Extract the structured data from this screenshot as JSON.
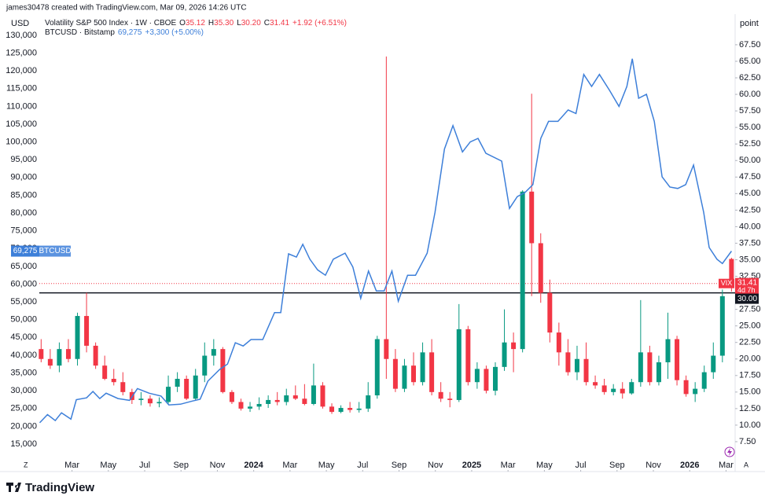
{
  "header": {
    "credit": "james30478 created with TradingView.com, Mar 09, 2026 14:26 UTC",
    "logo": "TradingView"
  },
  "chart_data": {
    "type": "candlestick",
    "legend": [
      {
        "name": "Volatility S&P 500 Index · 1W · CBOE",
        "fields": [
          {
            "label": "O",
            "value": "35.12"
          },
          {
            "label": "H",
            "value": "35.30"
          },
          {
            "label": "L",
            "value": "30.20"
          },
          {
            "label": "C",
            "value": "31.41"
          }
        ],
        "change": "+1.92 (+6.51%)",
        "color": "#f23645"
      },
      {
        "name": "BTCUSD · Bitstamp",
        "fields": [
          {
            "label": "",
            "value": "69,275"
          }
        ],
        "change": "+3,300 (+5.00%)",
        "color": "#3d7fd9"
      }
    ],
    "y_unit": "USD",
    "y2_unit": "point",
    "corner_labels": [
      "Z",
      "A"
    ],
    "xlim": [
      0.2,
      38.5
    ],
    "xticks": [
      {
        "value": 2,
        "label": "Mar"
      },
      {
        "value": 4,
        "label": "May"
      },
      {
        "value": 6,
        "label": "Jul"
      },
      {
        "value": 8,
        "label": "Sep"
      },
      {
        "value": 10,
        "label": "Nov"
      },
      {
        "value": 12,
        "label": "2024"
      },
      {
        "value": 14,
        "label": "Mar"
      },
      {
        "value": 16,
        "label": "May"
      },
      {
        "value": 18,
        "label": "Jul"
      },
      {
        "value": 20,
        "label": "Sep"
      },
      {
        "value": 22,
        "label": "Nov"
      },
      {
        "value": 24,
        "label": "2025"
      },
      {
        "value": 26,
        "label": "Mar"
      },
      {
        "value": 28,
        "label": "May"
      },
      {
        "value": 30,
        "label": "Jul"
      },
      {
        "value": 32,
        "label": "Sep"
      },
      {
        "value": 34,
        "label": "Nov"
      },
      {
        "value": 36,
        "label": "2026"
      },
      {
        "value": 38,
        "label": "Mar"
      }
    ],
    "ylim": [
      9470,
      133300
    ],
    "yticks": [
      {
        "value": 15000,
        "label": "15,000"
      },
      {
        "value": 20000,
        "label": "20,000"
      },
      {
        "value": 25000,
        "label": "25,000"
      },
      {
        "value": 30000,
        "label": "30,000"
      },
      {
        "value": 35000,
        "label": "35,000"
      },
      {
        "value": 40000,
        "label": "40,000"
      },
      {
        "value": 45000,
        "label": "45,000"
      },
      {
        "value": 50000,
        "label": "50,000"
      },
      {
        "value": 55000,
        "label": "55,000"
      },
      {
        "value": 60000,
        "label": "60,000"
      },
      {
        "value": 65000,
        "label": "65,000"
      },
      {
        "value": 70000,
        "label": "70,000"
      },
      {
        "value": 75000,
        "label": "75,000"
      },
      {
        "value": 80000,
        "label": "80,000"
      },
      {
        "value": 85000,
        "label": "85,000"
      },
      {
        "value": 90000,
        "label": "90,000"
      },
      {
        "value": 95000,
        "label": "95,000"
      },
      {
        "value": 100000,
        "label": "100,000"
      },
      {
        "value": 105000,
        "label": "105,000"
      },
      {
        "value": 110000,
        "label": "110,000"
      },
      {
        "value": 115000,
        "label": "115,000"
      },
      {
        "value": 120000,
        "label": "120,000"
      },
      {
        "value": 125000,
        "label": "125,000"
      },
      {
        "value": 130000,
        "label": "130,000"
      }
    ],
    "y2lim": [
      4.17,
      70.7
    ],
    "y2ticks": [
      {
        "value": 7.5,
        "label": "7.50"
      },
      {
        "value": 10,
        "label": "10.00"
      },
      {
        "value": 12.5,
        "label": "12.50"
      },
      {
        "value": 15,
        "label": "15.00"
      },
      {
        "value": 17.5,
        "label": "17.50"
      },
      {
        "value": 20,
        "label": "20.00"
      },
      {
        "value": 22.5,
        "label": "22.50"
      },
      {
        "value": 25,
        "label": "25.00"
      },
      {
        "value": 27.5,
        "label": "27.50"
      },
      {
        "value": 32.5,
        "label": "32.50"
      },
      {
        "value": 35,
        "label": "35.00"
      },
      {
        "value": 37.5,
        "label": "37.50"
      },
      {
        "value": 40,
        "label": "40.00"
      },
      {
        "value": 42.5,
        "label": "42.50"
      },
      {
        "value": 45,
        "label": "45.00"
      },
      {
        "value": 47.5,
        "label": "47.50"
      },
      {
        "value": 50,
        "label": "50.00"
      },
      {
        "value": 52.5,
        "label": "52.50"
      },
      {
        "value": 55,
        "label": "55.00"
      },
      {
        "value": 57.5,
        "label": "57.50"
      },
      {
        "value": 60,
        "label": "60.00"
      },
      {
        "value": 62.5,
        "label": "62.50"
      },
      {
        "value": 65,
        "label": "65.00"
      },
      {
        "value": 67.5,
        "label": "67.50"
      }
    ],
    "grid": false,
    "series": [
      {
        "name": "VIX",
        "type": "candlestick",
        "axis": "y2",
        "up_color": "#089981",
        "down_color": "#f23645",
        "x": [
          0.3,
          0.8,
          1.3,
          1.8,
          2.3,
          2.8,
          3.3,
          3.8,
          4.3,
          4.8,
          5.3,
          5.8,
          6.3,
          6.8,
          7.3,
          7.8,
          8.3,
          8.8,
          9.3,
          9.8,
          10.3,
          10.8,
          11.3,
          11.8,
          12.3,
          12.8,
          13.3,
          13.8,
          14.3,
          14.8,
          15.3,
          15.8,
          16.3,
          16.8,
          17.3,
          17.8,
          18.3,
          18.8,
          19.3,
          19.8,
          20.3,
          20.8,
          21.3,
          21.8,
          22.3,
          22.8,
          23.3,
          23.8,
          24.3,
          24.8,
          25.3,
          25.8,
          26.3,
          26.8,
          27.3,
          27.8,
          28.3,
          28.8,
          29.3,
          29.8,
          30.3,
          30.8,
          31.3,
          31.8,
          32.3,
          32.8,
          33.3,
          33.8,
          34.3,
          34.8,
          35.3,
          35.8,
          36.3,
          36.8,
          37.3,
          37.8,
          38.3
        ],
        "open": [
          21.5,
          20,
          19,
          21.5,
          20,
          26.5,
          22,
          19,
          17,
          16.5,
          15,
          13.8,
          14,
          13.3,
          13.5,
          15.8,
          17,
          14,
          17.5,
          20.5,
          21.5,
          15,
          13.5,
          12.5,
          12.8,
          13.2,
          13.8,
          13.5,
          14.5,
          14,
          13.2,
          16,
          12.8,
          12,
          12.6,
          12.3,
          12.5,
          14.5,
          23,
          20,
          15.5,
          19,
          16.5,
          21,
          15,
          14,
          13.8,
          24.5,
          16.5,
          18.5,
          15.2,
          18.8,
          22.5,
          21.5,
          45.3,
          37.5,
          30,
          24,
          21,
          18,
          20,
          16.5,
          16,
          15,
          15.5,
          14.8,
          16.5,
          21,
          16.5,
          19.5,
          23,
          16.8,
          14.7,
          15.5,
          18,
          20.5,
          35.12
        ],
        "high": [
          23,
          21.5,
          22.5,
          23,
          27,
          30,
          22.5,
          20.5,
          18.5,
          18,
          15.5,
          15,
          14.5,
          14.2,
          17.5,
          18,
          17.5,
          18.5,
          22.5,
          23,
          21.8,
          15.3,
          14,
          13.5,
          14.2,
          14.5,
          15,
          15.5,
          16,
          16.2,
          19.3,
          16.5,
          13.3,
          13,
          13.5,
          13.5,
          16.5,
          23.5,
          65.73,
          21.5,
          20,
          21,
          22.5,
          23,
          16.5,
          15,
          28.3,
          25,
          19.5,
          19,
          19.5,
          27.5,
          24,
          45.5,
          60.1,
          39,
          32,
          25.5,
          23,
          22,
          22.5,
          17.5,
          17,
          16.2,
          16.5,
          17,
          28.9,
          22,
          20.5,
          27,
          23.5,
          17.5,
          16.5,
          19,
          22.5,
          30.5,
          35.3
        ],
        "low": [
          19.5,
          18.5,
          18,
          19.5,
          19,
          21,
          18.5,
          16.8,
          16,
          14.5,
          13.2,
          13,
          12.8,
          12.7,
          13.2,
          15,
          13.8,
          13.8,
          16.5,
          19,
          14.8,
          13.2,
          12.2,
          12,
          12.3,
          12.6,
          13,
          13,
          13.8,
          13,
          13,
          12.5,
          11.7,
          11.8,
          11.9,
          11.9,
          12,
          14,
          17,
          15,
          15,
          16,
          16,
          14.5,
          13.5,
          12.7,
          13.5,
          16,
          15.5,
          14.8,
          14.5,
          18.2,
          18,
          21,
          29.5,
          28.5,
          22.5,
          19,
          17.5,
          16.8,
          16,
          15.5,
          14.6,
          14.5,
          14,
          14.6,
          15.8,
          16,
          16,
          17,
          16,
          14.3,
          13.5,
          15,
          17,
          19.5,
          30.2
        ],
        "close": [
          20,
          19,
          21.5,
          20,
          26.5,
          22,
          19,
          17,
          16.5,
          15,
          13.8,
          14,
          13.3,
          13.5,
          15.8,
          17,
          14,
          17.5,
          20.5,
          21.5,
          15,
          13.5,
          12.5,
          12.8,
          13.2,
          13.8,
          13.5,
          14.5,
          14,
          13.2,
          16,
          12.8,
          12,
          12.6,
          12.3,
          12.5,
          14.5,
          23,
          20,
          15.5,
          19,
          16.5,
          21,
          15,
          14,
          13.8,
          24.5,
          16.5,
          18.5,
          15.2,
          18.8,
          22.5,
          21.5,
          45.3,
          37.5,
          30,
          24,
          21,
          18,
          20,
          16.5,
          16,
          15,
          15.5,
          14.8,
          16.5,
          21,
          16.5,
          19.5,
          23,
          16.8,
          14.7,
          15.5,
          18,
          20.5,
          29.49,
          31.41
        ]
      },
      {
        "name": "BTCUSD",
        "type": "line",
        "axis": "y",
        "color": "#3d7fd9",
        "x": [
          0.22,
          0.65,
          1.08,
          1.42,
          1.94,
          2.24,
          2.8,
          3.15,
          3.53,
          3.88,
          4.53,
          5.17,
          5.6,
          6.25,
          6.9,
          7.33,
          7.97,
          8.62,
          9.05,
          9.48,
          10.13,
          10.56,
          10.99,
          11.42,
          11.85,
          12.5,
          13.15,
          13.49,
          13.92,
          14.35,
          14.7,
          15.09,
          15.52,
          15.95,
          16.38,
          17.03,
          17.46,
          17.89,
          18.32,
          18.75,
          19.18,
          19.61,
          19.96,
          20.47,
          20.91,
          21.55,
          21.98,
          22.5,
          22.97,
          23.49,
          23.92,
          24.35,
          24.78,
          25.65,
          26.08,
          26.51,
          26.94,
          27.37,
          27.8,
          28.23,
          28.75,
          29.31,
          29.74,
          30.17,
          30.6,
          31.03,
          31.59,
          32.11,
          32.54,
          32.84,
          33.19,
          33.62,
          34.05,
          34.48,
          34.91,
          35.34,
          35.78,
          36.21,
          36.77,
          37.07,
          37.5,
          37.8,
          38.3
        ],
        "values": [
          21000,
          23300,
          21600,
          23800,
          22000,
          27500,
          28000,
          29800,
          27800,
          29300,
          27800,
          27300,
          30600,
          29300,
          28500,
          26000,
          26200,
          27100,
          27600,
          32700,
          36000,
          37500,
          43500,
          42600,
          44400,
          44400,
          52000,
          52000,
          68500,
          67600,
          71200,
          67000,
          64000,
          62500,
          67000,
          68700,
          64800,
          56000,
          63700,
          58100,
          58100,
          63700,
          55200,
          62500,
          62500,
          68700,
          80200,
          98000,
          104600,
          97200,
          100000,
          101000,
          96800,
          94600,
          81300,
          84600,
          85800,
          88000,
          101000,
          105800,
          105800,
          109000,
          108000,
          119000,
          115600,
          119000,
          114500,
          110000,
          115600,
          123400,
          112300,
          113400,
          105800,
          90200,
          87300,
          86900,
          88000,
          93500,
          80200,
          70300,
          67000,
          65800,
          69275
        ]
      }
    ],
    "last_price": {
      "name": "VIX",
      "value": 31.41,
      "countdown": "4d 7h",
      "color": "#f23645"
    },
    "crosshair": {
      "value": 30,
      "label": "30.00"
    },
    "btc_tag": {
      "value": 69275,
      "label": "69,275",
      "name": "BTCUSD"
    }
  }
}
